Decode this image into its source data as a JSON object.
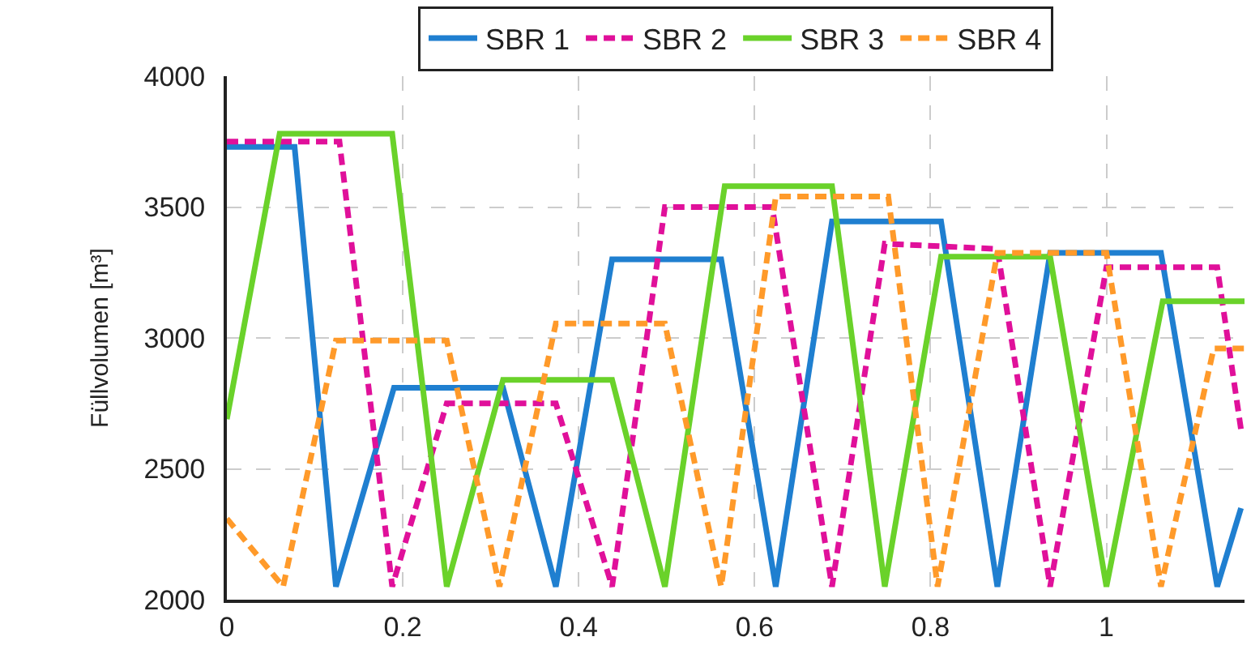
{
  "chart_data": {
    "type": "line",
    "ylabel": "Füllvolumen [m³]",
    "xlim": [
      0,
      1.157
    ],
    "xticks": [
      0,
      0.2,
      0.4,
      0.6,
      0.8,
      1
    ],
    "ylim": [
      2000,
      4000
    ],
    "yticks": [
      2000,
      2500,
      3000,
      3500,
      4000
    ],
    "grid": true,
    "legend": "top",
    "marker": "none",
    "series": [
      {
        "name": "SBR 1",
        "color": "#1f7fd0",
        "line_style": "solid",
        "x": [
          0,
          0.077,
          0.124,
          0.19,
          0.314,
          0.374,
          0.438,
          0.562,
          0.624,
          0.688,
          0.812,
          0.876,
          0.936,
          1.062,
          1.126,
          1.153
        ],
        "values": [
          3730,
          3730,
          2050,
          2810,
          2810,
          2050,
          3300,
          3300,
          2050,
          3445,
          3445,
          2050,
          3325,
          3325,
          2050,
          2350
        ]
      },
      {
        "name": "SBR 2",
        "color": "#e0109a",
        "line_style": "dashed",
        "x": [
          0,
          0.128,
          0.188,
          0.25,
          0.374,
          0.438,
          0.498,
          0.62,
          0.688,
          0.748,
          0.876,
          0.936,
          1.0,
          1.126,
          1.153
        ],
        "values": [
          3750,
          3750,
          2050,
          2750,
          2750,
          2050,
          3500,
          3500,
          2050,
          3360,
          3340,
          2050,
          3270,
          3270,
          2650
        ]
      },
      {
        "name": "SBR 3",
        "color": "#6ad22a",
        "line_style": "solid",
        "x": [
          0,
          0.06,
          0.188,
          0.25,
          0.314,
          0.438,
          0.498,
          0.566,
          0.688,
          0.748,
          0.812,
          0.936,
          1.0,
          1.064,
          1.157
        ],
        "values": [
          2690,
          3780,
          3780,
          2050,
          2840,
          2840,
          2050,
          3580,
          3580,
          2050,
          3310,
          3310,
          2050,
          3140,
          3140
        ]
      },
      {
        "name": "SBR 4",
        "color": "#ff9a2a",
        "line_style": "dashed",
        "x": [
          0,
          0.064,
          0.124,
          0.25,
          0.31,
          0.374,
          0.498,
          0.562,
          0.624,
          0.752,
          0.808,
          0.876,
          1.0,
          1.062,
          1.122,
          1.157
        ],
        "values": [
          2310,
          2050,
          2990,
          2990,
          2050,
          3055,
          3055,
          2050,
          3540,
          3540,
          2050,
          3325,
          3325,
          2050,
          2960,
          2960
        ]
      }
    ]
  }
}
